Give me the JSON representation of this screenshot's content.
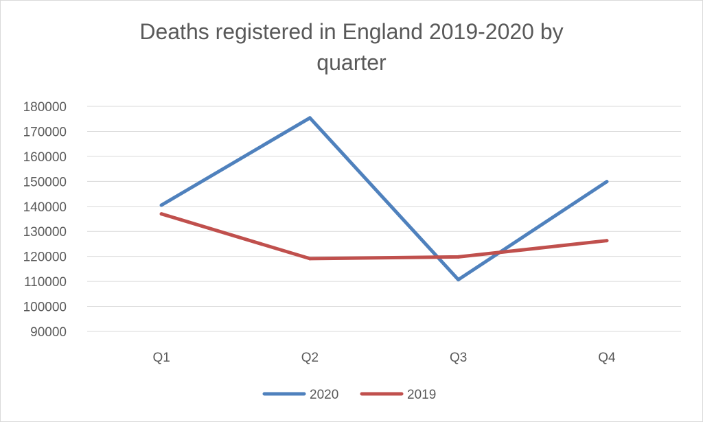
{
  "chart_data": {
    "type": "line",
    "title_lines": [
      "Deaths registered in England 2019-2020 by",
      "quarter"
    ],
    "categories": [
      "Q1",
      "Q2",
      "Q3",
      "Q4"
    ],
    "series": [
      {
        "name": "2020",
        "color": "#4f81bd",
        "values": [
          140500,
          175400,
          110700,
          149900
        ]
      },
      {
        "name": "2019",
        "color": "#c0504d",
        "values": [
          137000,
          119100,
          119800,
          126300
        ]
      }
    ],
    "ylim": [
      90000,
      180000
    ],
    "yticks": [
      "90000",
      "100000",
      "110000",
      "120000",
      "130000",
      "140000",
      "150000",
      "160000",
      "170000",
      "180000"
    ],
    "grid": true,
    "legend_position": "bottom"
  }
}
